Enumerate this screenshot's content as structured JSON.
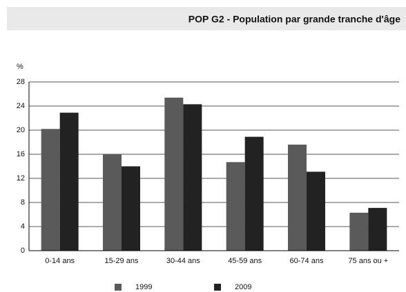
{
  "chart_data": {
    "type": "bar",
    "title": "POP G2 - Population par grande tranche d'âge",
    "y_label": "%",
    "categories": [
      "0-14 ans",
      "15-29 ans",
      "30-44 ans",
      "45-59 ans",
      "60-74 ans",
      "75 ans ou +"
    ],
    "series": [
      {
        "name": "1999",
        "color": "#5a5a5a",
        "values": [
          20.2,
          16.0,
          25.4,
          14.7,
          17.6,
          6.3
        ]
      },
      {
        "name": "2009",
        "color": "#222222",
        "values": [
          22.9,
          14.0,
          24.3,
          18.9,
          13.1,
          7.1
        ]
      }
    ],
    "ylim": [
      0,
      28
    ],
    "yticks": [
      0,
      4,
      8,
      12,
      16,
      20,
      24,
      28
    ],
    "grid": true,
    "legend": "bottom"
  }
}
